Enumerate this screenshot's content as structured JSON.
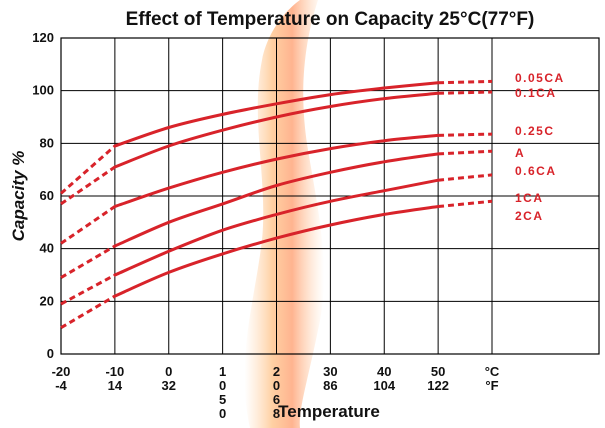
{
  "chart_data": {
    "type": "line",
    "title": "Effect of Temperature on Capacity 25°C(77°F)",
    "xlabel": "Temperature",
    "ylabel": "Capacity %",
    "x_ticks": [
      {
        "c": "-20",
        "f": "-4",
        "x": -20
      },
      {
        "c": "-10",
        "f": "14",
        "x": -10
      },
      {
        "c": "0",
        "f": "32",
        "x": 0
      },
      {
        "c": "1\n0\n5\n0",
        "f": "",
        "x": 10
      },
      {
        "c": "2\n0\n6\n8",
        "f": "",
        "x": 20
      },
      {
        "c": "30",
        "f": "86",
        "x": 30
      },
      {
        "c": "40",
        "f": "104",
        "x": 40
      },
      {
        "c": "50",
        "f": "122",
        "x": 50
      },
      {
        "c": "°C",
        "f": "°F",
        "x": 60
      }
    ],
    "xlim": [
      -20,
      60
    ],
    "ylim": [
      0,
      120
    ],
    "y_ticks": [
      0,
      20,
      40,
      60,
      80,
      100,
      120
    ],
    "grid": true,
    "series": [
      {
        "name": "0.05CA",
        "x": [
          -20,
          -10,
          0,
          10,
          20,
          30,
          40,
          50,
          60
        ],
        "y": [
          61,
          79,
          86,
          91,
          95,
          98.5,
          101,
          103,
          103.5
        ],
        "solid_from": -10,
        "solid_to": 50
      },
      {
        "name": "0.1CA",
        "x": [
          -20,
          -10,
          0,
          10,
          20,
          30,
          40,
          50,
          60
        ],
        "y": [
          57,
          71,
          79,
          85,
          90,
          94,
          97,
          99,
          99.5
        ],
        "solid_from": -10,
        "solid_to": 50
      },
      {
        "name": "0.25CA",
        "x": [
          -20,
          -10,
          0,
          10,
          20,
          30,
          40,
          50,
          60
        ],
        "y": [
          42,
          56,
          63,
          69,
          74,
          78,
          81,
          83,
          83.5
        ],
        "solid_from": -10,
        "solid_to": 50
      },
      {
        "name": "0.6CA",
        "x": [
          -20,
          -10,
          0,
          10,
          20,
          30,
          40,
          50,
          60
        ],
        "y": [
          29,
          41,
          50,
          57,
          64,
          69,
          73,
          76,
          77
        ],
        "solid_from": -10,
        "solid_to": 50
      },
      {
        "name": "1CA",
        "x": [
          -20,
          -10,
          0,
          10,
          20,
          30,
          40,
          50,
          60
        ],
        "y": [
          19,
          30,
          39,
          47,
          53,
          58,
          62,
          66,
          68
        ],
        "solid_from": -10,
        "solid_to": 50
      },
      {
        "name": "2CA",
        "x": [
          -20,
          -10,
          0,
          10,
          20,
          30,
          40,
          50,
          60
        ],
        "y": [
          10,
          22,
          31,
          38,
          44,
          49,
          53,
          56,
          58
        ],
        "solid_from": -10,
        "solid_to": 50
      }
    ],
    "series_labels": [
      "0.05CA",
      "0.1CA",
      "0.25C",
      "A",
      "0.6CA",
      "1CA",
      "2CA"
    ]
  }
}
